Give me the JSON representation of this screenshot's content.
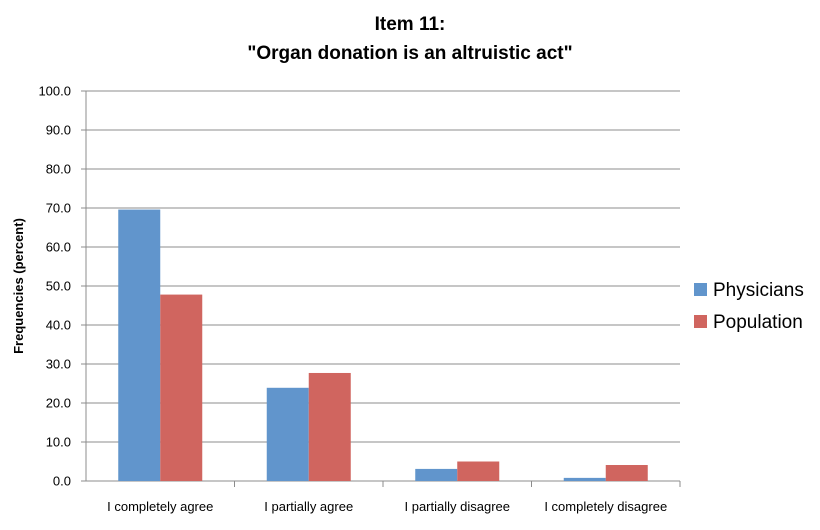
{
  "chart_data": {
    "type": "bar",
    "title_lines": [
      "Item 11:",
      "\"Organ donation is an altruistic act\""
    ],
    "xlabel": "",
    "ylabel": "Frequencies (percent)",
    "ylim": [
      0,
      100
    ],
    "yticks": [
      "0.0",
      "10.0",
      "20.0",
      "30.0",
      "40.0",
      "50.0",
      "60.0",
      "70.0",
      "80.0",
      "90.0",
      "100.0"
    ],
    "categories": [
      "I completely agree",
      "I partially agree",
      "I partially disagree",
      "I completely disagree"
    ],
    "series": [
      {
        "name": "Physicians",
        "color": "#6195cc",
        "values": [
          69.6,
          23.9,
          3.1,
          0.8
        ]
      },
      {
        "name": "Population",
        "color": "#d0655f",
        "values": [
          47.8,
          27.7,
          5.0,
          4.1
        ]
      }
    ],
    "grid": true,
    "legend_position": "right"
  }
}
